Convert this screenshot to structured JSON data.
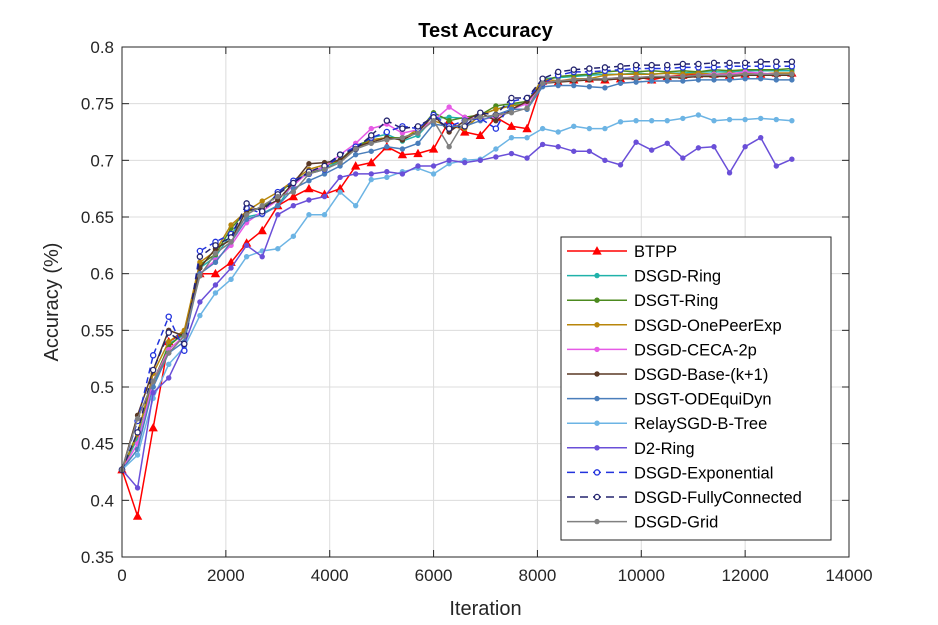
{
  "chart_data": {
    "type": "line",
    "title": "Test Accuracy",
    "xlabel": "Iteration",
    "ylabel": "Accuracy (%)",
    "xlim": [
      0,
      14000
    ],
    "ylim": [
      0.35,
      0.8
    ],
    "xticks": [
      0,
      2000,
      4000,
      6000,
      8000,
      10000,
      12000,
      14000
    ],
    "xtick_labels": [
      "0",
      "2000",
      "4000",
      "6000",
      "8000",
      "10000",
      "12000",
      "14000"
    ],
    "yticks": [
      0.35,
      0.4,
      0.45,
      0.5,
      0.55,
      0.6,
      0.65,
      0.7,
      0.75,
      0.8
    ],
    "ytick_labels": [
      "0.35",
      "0.4",
      "0.45",
      "0.5",
      "0.55",
      "0.6",
      "0.65",
      "0.7",
      "0.75",
      "0.8"
    ],
    "grid": true,
    "legend_position": "lower-right",
    "x": [
      0,
      300,
      600,
      900,
      1200,
      1500,
      1800,
      2100,
      2400,
      2700,
      3000,
      3300,
      3600,
      3900,
      4200,
      4500,
      4800,
      5100,
      5400,
      5700,
      6000,
      6300,
      6600,
      6900,
      7200,
      7500,
      7800,
      8100,
      8400,
      8700,
      9000,
      9300,
      9600,
      9900,
      10200,
      10500,
      10800,
      11100,
      11400,
      11700,
      12000,
      12300,
      12600,
      12900
    ],
    "series": [
      {
        "name": "BTPP",
        "color": "#ff0000",
        "style": "solid",
        "marker": "triangle",
        "values": [
          0.427,
          0.386,
          0.464,
          0.54,
          0.548,
          0.6,
          0.6,
          0.61,
          0.627,
          0.638,
          0.66,
          0.668,
          0.675,
          0.67,
          0.675,
          0.695,
          0.698,
          0.712,
          0.705,
          0.706,
          0.71,
          0.735,
          0.725,
          0.722,
          0.738,
          0.73,
          0.728,
          0.77,
          0.769,
          0.771,
          0.772,
          0.771,
          0.772,
          0.774,
          0.771,
          0.774,
          0.775,
          0.776,
          0.776,
          0.775,
          0.776,
          0.776,
          0.777,
          0.777
        ]
      },
      {
        "name": "DSGD-Ring",
        "color": "#20b2aa",
        "style": "solid",
        "marker": "circle",
        "values": [
          0.427,
          0.455,
          0.5,
          0.538,
          0.546,
          0.605,
          0.615,
          0.635,
          0.65,
          0.653,
          0.66,
          0.68,
          0.69,
          0.692,
          0.7,
          0.71,
          0.72,
          0.723,
          0.717,
          0.722,
          0.737,
          0.738,
          0.737,
          0.74,
          0.745,
          0.749,
          0.75,
          0.772,
          0.773,
          0.774,
          0.775,
          0.776,
          0.776,
          0.777,
          0.776,
          0.777,
          0.777,
          0.778,
          0.778,
          0.778,
          0.779,
          0.779,
          0.779,
          0.779
        ]
      },
      {
        "name": "DSGT-Ring",
        "color": "#4c8a1f",
        "style": "solid",
        "marker": "circle",
        "values": [
          0.427,
          0.46,
          0.505,
          0.536,
          0.548,
          0.608,
          0.617,
          0.64,
          0.655,
          0.658,
          0.67,
          0.682,
          0.688,
          0.695,
          0.7,
          0.713,
          0.718,
          0.72,
          0.72,
          0.725,
          0.742,
          0.735,
          0.738,
          0.74,
          0.748,
          0.75,
          0.752,
          0.77,
          0.774,
          0.775,
          0.776,
          0.778,
          0.779,
          0.778,
          0.779,
          0.778,
          0.779,
          0.778,
          0.78,
          0.779,
          0.78,
          0.78,
          0.78,
          0.781
        ]
      },
      {
        "name": "DSGD-OnePeerExp",
        "color": "#b8860b",
        "style": "solid",
        "marker": "circle",
        "values": [
          0.427,
          0.458,
          0.512,
          0.54,
          0.55,
          0.61,
          0.62,
          0.643,
          0.655,
          0.664,
          0.672,
          0.682,
          0.692,
          0.696,
          0.7,
          0.71,
          0.718,
          0.72,
          0.718,
          0.728,
          0.735,
          0.73,
          0.728,
          0.74,
          0.745,
          0.748,
          0.75,
          0.772,
          0.77,
          0.772,
          0.772,
          0.775,
          0.776,
          0.776,
          0.776,
          0.777,
          0.776,
          0.777,
          0.776,
          0.777,
          0.777,
          0.776,
          0.777,
          0.777
        ]
      },
      {
        "name": "DSGD-CECA-2p",
        "color": "#e65be6",
        "style": "solid",
        "marker": "circle",
        "values": [
          0.427,
          0.45,
          0.505,
          0.533,
          0.545,
          0.6,
          0.612,
          0.625,
          0.645,
          0.655,
          0.665,
          0.678,
          0.69,
          0.694,
          0.705,
          0.715,
          0.728,
          0.732,
          0.724,
          0.727,
          0.735,
          0.747,
          0.738,
          0.736,
          0.738,
          0.745,
          0.75,
          0.768,
          0.77,
          0.771,
          0.772,
          0.772,
          0.773,
          0.773,
          0.774,
          0.774,
          0.774,
          0.775,
          0.776,
          0.776,
          0.778,
          0.777,
          0.776,
          0.775
        ]
      },
      {
        "name": "DSGD-Base-(k+1)",
        "color": "#5a3825",
        "style": "solid",
        "marker": "circle",
        "values": [
          0.427,
          0.475,
          0.515,
          0.55,
          0.545,
          0.605,
          0.622,
          0.63,
          0.656,
          0.658,
          0.665,
          0.68,
          0.697,
          0.698,
          0.7,
          0.712,
          0.716,
          0.72,
          0.718,
          0.725,
          0.74,
          0.725,
          0.735,
          0.742,
          0.735,
          0.745,
          0.752,
          0.768,
          0.769,
          0.77,
          0.771,
          0.771,
          0.772,
          0.772,
          0.773,
          0.773,
          0.773,
          0.774,
          0.774,
          0.774,
          0.775,
          0.775,
          0.775,
          0.775
        ]
      },
      {
        "name": "DSGT-ODEquiDyn",
        "color": "#4a7ebb",
        "style": "solid",
        "marker": "circle",
        "values": [
          0.427,
          0.445,
          0.5,
          0.53,
          0.54,
          0.6,
          0.61,
          0.628,
          0.648,
          0.652,
          0.66,
          0.675,
          0.682,
          0.688,
          0.695,
          0.705,
          0.708,
          0.712,
          0.71,
          0.715,
          0.732,
          0.73,
          0.73,
          0.735,
          0.74,
          0.745,
          0.745,
          0.765,
          0.766,
          0.766,
          0.765,
          0.764,
          0.768,
          0.769,
          0.77,
          0.77,
          0.77,
          0.771,
          0.771,
          0.771,
          0.772,
          0.772,
          0.771,
          0.771
        ]
      },
      {
        "name": "RelaySGD-B-Tree",
        "color": "#6cb4e4",
        "style": "solid",
        "marker": "circle",
        "values": [
          0.427,
          0.44,
          0.49,
          0.52,
          0.535,
          0.563,
          0.583,
          0.595,
          0.615,
          0.62,
          0.622,
          0.633,
          0.652,
          0.652,
          0.672,
          0.66,
          0.683,
          0.685,
          0.69,
          0.693,
          0.688,
          0.697,
          0.7,
          0.701,
          0.71,
          0.72,
          0.72,
          0.728,
          0.725,
          0.73,
          0.728,
          0.728,
          0.734,
          0.735,
          0.735,
          0.735,
          0.737,
          0.74,
          0.735,
          0.736,
          0.736,
          0.737,
          0.736,
          0.735
        ]
      },
      {
        "name": "D2-Ring",
        "color": "#6a4fd8",
        "style": "solid",
        "marker": "circle",
        "values": [
          0.427,
          0.411,
          0.495,
          0.508,
          0.537,
          0.575,
          0.59,
          0.605,
          0.625,
          0.615,
          0.652,
          0.66,
          0.665,
          0.668,
          0.685,
          0.688,
          0.688,
          0.69,
          0.688,
          0.695,
          0.695,
          0.7,
          0.698,
          0.7,
          0.703,
          0.706,
          0.702,
          0.714,
          0.712,
          0.708,
          0.708,
          0.7,
          0.696,
          0.716,
          0.709,
          0.715,
          0.702,
          0.711,
          0.712,
          0.689,
          0.712,
          0.72,
          0.695,
          0.701
        ]
      },
      {
        "name": "DSGD-Exponential",
        "color": "#2233dd",
        "style": "dashed",
        "marker": "open-circle",
        "values": [
          0.427,
          0.47,
          0.528,
          0.562,
          0.532,
          0.62,
          0.628,
          0.635,
          0.658,
          0.653,
          0.672,
          0.682,
          0.688,
          0.692,
          0.705,
          0.712,
          0.72,
          0.725,
          0.73,
          0.728,
          0.74,
          0.73,
          0.735,
          0.737,
          0.728,
          0.752,
          0.755,
          0.768,
          0.775,
          0.778,
          0.778,
          0.779,
          0.78,
          0.781,
          0.781,
          0.781,
          0.782,
          0.782,
          0.782,
          0.783,
          0.783,
          0.783,
          0.783,
          0.783
        ]
      },
      {
        "name": "DSGD-FullyConnected",
        "color": "#23236e",
        "style": "dashed",
        "marker": "open-circle",
        "values": [
          0.427,
          0.46,
          0.515,
          0.548,
          0.538,
          0.615,
          0.625,
          0.632,
          0.662,
          0.655,
          0.67,
          0.68,
          0.69,
          0.695,
          0.705,
          0.71,
          0.722,
          0.735,
          0.728,
          0.73,
          0.738,
          0.728,
          0.73,
          0.742,
          0.74,
          0.755,
          0.755,
          0.772,
          0.778,
          0.78,
          0.781,
          0.782,
          0.783,
          0.784,
          0.784,
          0.784,
          0.785,
          0.785,
          0.786,
          0.786,
          0.786,
          0.787,
          0.787,
          0.787
        ]
      },
      {
        "name": "DSGD-Grid",
        "color": "#808080",
        "style": "solid",
        "marker": "circle",
        "values": [
          0.427,
          0.472,
          0.505,
          0.53,
          0.545,
          0.598,
          0.618,
          0.628,
          0.652,
          0.66,
          0.668,
          0.672,
          0.688,
          0.692,
          0.698,
          0.71,
          0.715,
          0.718,
          0.72,
          0.724,
          0.735,
          0.712,
          0.735,
          0.738,
          0.74,
          0.742,
          0.746,
          0.768,
          0.77,
          0.771,
          0.772,
          0.772,
          0.773,
          0.773,
          0.774,
          0.774,
          0.774,
          0.775,
          0.775,
          0.775,
          0.776,
          0.776,
          0.776,
          0.776
        ]
      }
    ]
  }
}
